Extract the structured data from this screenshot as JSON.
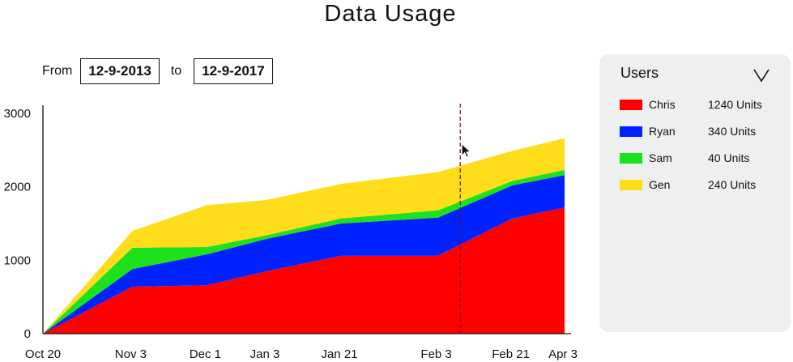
{
  "title": "Data Usage",
  "date_range": {
    "from_label": "From",
    "from_value": "12-9-2013",
    "to_label": "to",
    "to_value": "12-9-2017"
  },
  "users_panel": {
    "header": "Users",
    "dropdown_icon": "chevron-down-icon",
    "items": [
      {
        "name": "Chris",
        "units": "1240 Units",
        "color": "#ff0000"
      },
      {
        "name": "Ryan",
        "units": "340 Units",
        "color": "#0022ff"
      },
      {
        "name": "Sam",
        "units": "40 Units",
        "color": "#1ee11e"
      },
      {
        "name": "Gen",
        "units": "240 Units",
        "color": "#ffdd1a"
      }
    ]
  },
  "chart_data": {
    "type": "area",
    "stacked": true,
    "title": "Data Usage",
    "xlabel": "",
    "ylabel": "",
    "ylim": [
      0,
      3000
    ],
    "yticks": [
      0,
      1000,
      2000,
      3000
    ],
    "x_tick_labels": [
      "Oct 20",
      "Nov 3",
      "Dec 1",
      "Jan 3",
      "Jan 21",
      "Feb 3",
      "Feb 21",
      "Apr 3"
    ],
    "x": [
      0,
      1.2,
      2.2,
      3,
      4,
      5.3,
      6.3,
      7
    ],
    "series": [
      {
        "name": "Chris",
        "color": "#ff0000",
        "values": [
          0,
          640,
          660,
          850,
          1060,
          1060,
          1570,
          1720
        ]
      },
      {
        "name": "Ryan",
        "color": "#0022ff",
        "values": [
          0,
          240,
          420,
          440,
          440,
          520,
          450,
          440
        ]
      },
      {
        "name": "Sam",
        "color": "#1ee11e",
        "values": [
          0,
          290,
          100,
          50,
          70,
          100,
          60,
          70
        ]
      },
      {
        "name": "Gen",
        "color": "#ffdd1a",
        "values": [
          0,
          230,
          570,
          480,
          470,
          520,
          410,
          430
        ]
      }
    ],
    "cursor_line_x": 5.6,
    "legend_position": "right",
    "grid": false
  }
}
